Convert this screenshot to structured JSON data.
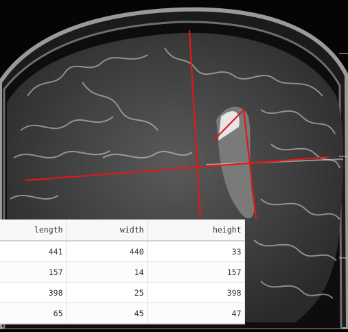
{
  "viewer": {
    "measurement_color": "#e01818"
  },
  "table": {
    "columns": [
      "length",
      "width",
      "height"
    ],
    "rows": [
      [
        "441",
        "440",
        "33"
      ],
      [
        "157",
        "14",
        "157"
      ],
      [
        "398",
        "25",
        "398"
      ],
      [
        "65",
        "45",
        "47"
      ]
    ]
  }
}
